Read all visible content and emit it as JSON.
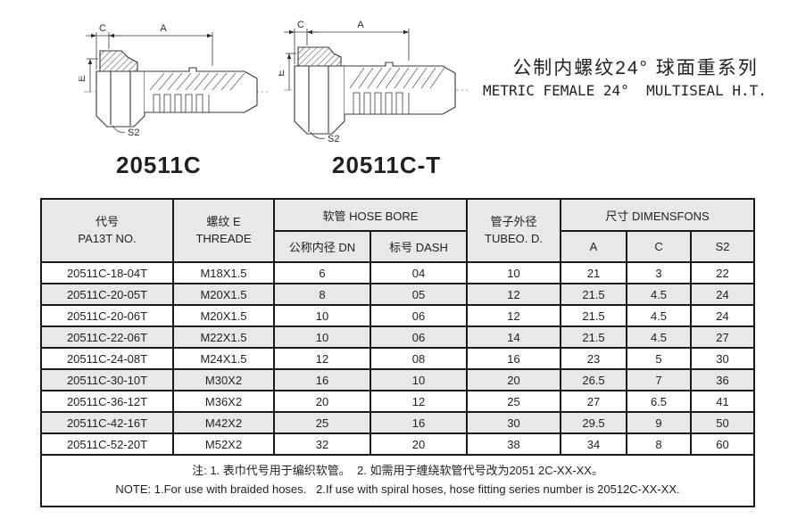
{
  "page": {
    "title_cn": "公制内螺纹24° 球面重系列",
    "title_en": "METRIC FEMALE 24°  MULTISEAL H.T."
  },
  "drawings": [
    {
      "label": "20511C",
      "dim_a": "A",
      "dim_c": "C",
      "dim_e": "E",
      "dim_s2": "S2"
    },
    {
      "label": "20511C-T",
      "dim_a": "A",
      "dim_c": "C",
      "dim_e": "E",
      "dim_s2": "S2"
    }
  ],
  "table": {
    "headers": {
      "part_no_cn": "代号",
      "part_no_en": "PA13T NO.",
      "thread_cn": "螺纹 E",
      "thread_en": "THREADE",
      "hose_bore": "软管 HOSE BORE",
      "dn": "公称内径 DN",
      "dash": "标号 DASH",
      "tube_od_cn": "管子外径",
      "tube_od_en": "TUBEO. D.",
      "dimensions": "尺寸 DIMENSFONS",
      "dim_a": "A",
      "dim_c": "C",
      "dim_s2": "S2"
    },
    "rows": [
      [
        "20511C-18-04T",
        "M18X1.5",
        "6",
        "04",
        "10",
        "21",
        "3",
        "22"
      ],
      [
        "20511C-20-05T",
        "M20X1.5",
        "8",
        "05",
        "12",
        "21.5",
        "4.5",
        "24"
      ],
      [
        "20511C-20-06T",
        "M20X1.5",
        "10",
        "06",
        "12",
        "21.5",
        "4.5",
        "24"
      ],
      [
        "20511C-22-06T",
        "M22X1.5",
        "10",
        "06",
        "14",
        "21.5",
        "4.5",
        "27"
      ],
      [
        "20511C-24-08T",
        "M24X1.5",
        "12",
        "08",
        "16",
        "23",
        "5",
        "30"
      ],
      [
        "20511C-30-10T",
        "M30X2",
        "16",
        "10",
        "20",
        "26.5",
        "7",
        "36"
      ],
      [
        "20511C-36-12T",
        "M36X2",
        "20",
        "12",
        "25",
        "27",
        "6.5",
        "41"
      ],
      [
        "20511C-42-16T",
        "M42X2",
        "25",
        "16",
        "30",
        "29.5",
        "9",
        "50"
      ],
      [
        "20511C-52-20T",
        "M52X2",
        "32",
        "20",
        "38",
        "34",
        "8",
        "60"
      ]
    ],
    "notes": {
      "cn": "注: 1. 表巾代号用于编织软管。  2. 如需用于缠绕软管代号改为2051 2C-XX-XX。",
      "en": "NOTE: 1.For use with braided hoses.   2.If use with spiral hoses, hose fitting series number is 20512C-XX-XX."
    }
  },
  "colors": {
    "header_bg": "#e8e8e8",
    "row_alt_bg": "#e8e8e8",
    "border": "#1a1a1a",
    "line_art": "#3a3a3a"
  }
}
